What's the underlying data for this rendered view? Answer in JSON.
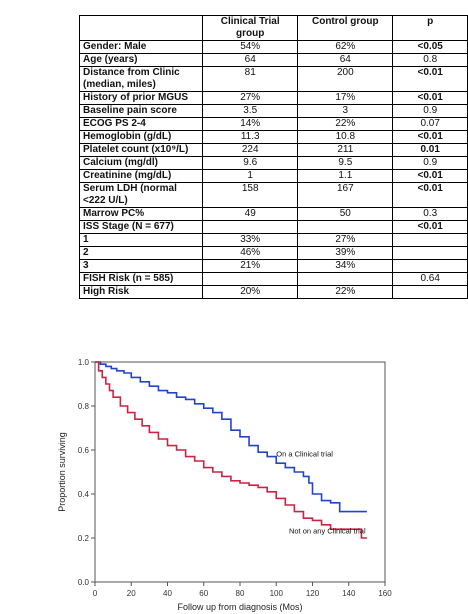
{
  "table": {
    "headers": [
      "",
      "Clinical Trial group",
      "Control group",
      "p"
    ],
    "rows": [
      {
        "label": "Gender: Male",
        "trial": "54%",
        "control": "62%",
        "p": "<0.05",
        "p_bold": true
      },
      {
        "label": "Age (years)",
        "trial": "64",
        "control": "64",
        "p": "0.8",
        "p_bold": false
      },
      {
        "label": "Distance from Clinic (median, miles)",
        "trial": "81",
        "control": "200",
        "p": "<0.01",
        "p_bold": true,
        "tall": true
      },
      {
        "label": "History of prior MGUS",
        "trial": "27%",
        "control": "17%",
        "p": "<0.01",
        "p_bold": true
      },
      {
        "label": "Baseline pain score",
        "trial": "3.5",
        "control": "3",
        "p": "0.9",
        "p_bold": false
      },
      {
        "label": "ECOG PS 2-4",
        "trial": "14%",
        "control": "22%",
        "p": "0.07",
        "p_bold": false
      },
      {
        "label": "Hemoglobin (g/dL)",
        "trial": "11.3",
        "control": "10.8",
        "p": "<0.01",
        "p_bold": true
      },
      {
        "label": "Platelet count (x10⁹/L)",
        "trial": "224",
        "control": "211",
        "p": "0.01",
        "p_bold": true
      },
      {
        "label": "Calcium (mg/dl)",
        "trial": "9.6",
        "control": "9.5",
        "p": "0.9",
        "p_bold": false
      },
      {
        "label": "Creatinine (mg/dL)",
        "trial": "1",
        "control": "1.1",
        "p": "<0.01",
        "p_bold": true
      },
      {
        "label": "Serum LDH (normal <222 U/L)",
        "trial": "158",
        "control": "167",
        "p": "<0.01",
        "p_bold": true,
        "tall": true
      },
      {
        "label": "Marrow PC%",
        "trial": "49",
        "control": "50",
        "p": "0.3",
        "p_bold": false
      },
      {
        "label": "ISS Stage (N = 677)",
        "trial": "",
        "control": "",
        "p": "<0.01",
        "p_bold": true
      },
      {
        "label": "1",
        "trial": "33%",
        "control": "27%",
        "p": "",
        "p_bold": false
      },
      {
        "label": "2",
        "trial": "46%",
        "control": "39%",
        "p": "",
        "p_bold": false
      },
      {
        "label": "3",
        "trial": "21%",
        "control": "34%",
        "p": "",
        "p_bold": false
      },
      {
        "label": "FISH Risk (n = 585)",
        "trial": "",
        "control": "",
        "p": "0.64",
        "p_bold": false
      },
      {
        "label": "High  Risk",
        "trial": "20%",
        "control": "22%",
        "p": "",
        "p_bold": false
      }
    ]
  },
  "chart_data": {
    "type": "line",
    "xlabel": "Follow up from diagnosis (Mos)",
    "ylabel": "Proportion surviving",
    "xlim": [
      0,
      160
    ],
    "ylim": [
      0,
      1.0
    ],
    "xticks": [
      0,
      20,
      40,
      60,
      80,
      100,
      120,
      140,
      160
    ],
    "yticks": [
      0.0,
      0.2,
      0.4,
      0.6,
      0.8,
      1.0
    ],
    "xtick_labels": [
      "0",
      "20",
      "40",
      "60",
      "80",
      "100",
      "120",
      "140",
      "160"
    ],
    "ytick_labels": [
      "0.0",
      "0.2",
      "0.4",
      "0.6",
      "0.8",
      "1.0"
    ],
    "series": [
      {
        "name": "On a Clinical trial",
        "color": "#2244cc",
        "x": [
          0,
          3,
          6,
          9,
          12,
          16,
          20,
          25,
          30,
          35,
          40,
          45,
          50,
          55,
          60,
          65,
          70,
          75,
          80,
          85,
          90,
          95,
          100,
          105,
          110,
          115,
          118,
          120,
          125,
          130,
          135,
          140,
          150
        ],
        "y": [
          1.0,
          0.99,
          0.98,
          0.97,
          0.96,
          0.95,
          0.93,
          0.91,
          0.89,
          0.87,
          0.86,
          0.84,
          0.83,
          0.81,
          0.79,
          0.77,
          0.74,
          0.69,
          0.66,
          0.62,
          0.59,
          0.57,
          0.54,
          0.52,
          0.5,
          0.48,
          0.45,
          0.4,
          0.37,
          0.36,
          0.32,
          0.32,
          0.32
        ]
      },
      {
        "name": "Not on any Clinical trial",
        "color": "#cc2244",
        "x": [
          0,
          2,
          4,
          6,
          8,
          10,
          14,
          18,
          22,
          26,
          30,
          35,
          40,
          45,
          50,
          55,
          60,
          65,
          70,
          75,
          80,
          85,
          90,
          95,
          100,
          105,
          110,
          115,
          120,
          125,
          130,
          140,
          147,
          150
        ],
        "y": [
          1.0,
          0.96,
          0.93,
          0.9,
          0.87,
          0.84,
          0.8,
          0.77,
          0.74,
          0.71,
          0.68,
          0.65,
          0.62,
          0.6,
          0.57,
          0.55,
          0.52,
          0.5,
          0.48,
          0.46,
          0.45,
          0.44,
          0.43,
          0.41,
          0.38,
          0.35,
          0.32,
          0.29,
          0.28,
          0.26,
          0.24,
          0.24,
          0.2,
          0.2
        ]
      }
    ],
    "annotations": [
      {
        "text": "On a Clinical trial",
        "x": 100,
        "y": 0.57
      },
      {
        "text": "Not on any Clinical trial",
        "x": 107,
        "y": 0.22
      }
    ]
  }
}
